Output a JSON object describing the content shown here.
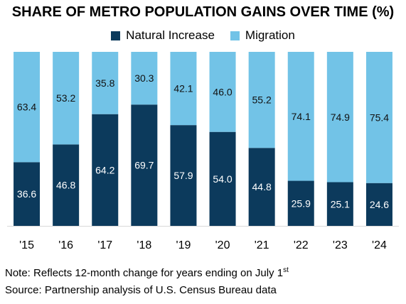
{
  "chart_data": {
    "type": "bar",
    "stacked": true,
    "title": "SHARE OF METRO POPULATION GAINS OVER TIME (%)",
    "xlabel": "",
    "ylabel": "",
    "ylim": [
      0,
      100
    ],
    "grid": false,
    "legend_position": "top-center",
    "categories": [
      "'15",
      "'16",
      "'17",
      "'18",
      "'19",
      "'20",
      "'21",
      "'22",
      "'23",
      "'24"
    ],
    "series": [
      {
        "name": "Natural Increase",
        "color": "#0c3a5c",
        "label_color": "#ffffff",
        "values": [
          36.6,
          46.8,
          64.2,
          69.7,
          57.9,
          54.0,
          44.8,
          25.9,
          25.1,
          24.6
        ],
        "labels": [
          "36.6",
          "46.8",
          "64.2",
          "69.7",
          "57.9",
          "54.0",
          "44.8",
          "25.9",
          "25.1",
          "24.6"
        ]
      },
      {
        "name": "Migration",
        "color": "#72c3e7",
        "label_color": "#111111",
        "values": [
          63.4,
          53.2,
          35.8,
          30.3,
          42.1,
          46.0,
          55.2,
          74.1,
          74.9,
          75.4
        ],
        "labels": [
          "63.4",
          "53.2",
          "35.8",
          "30.3",
          "42.1",
          "46.0",
          "55.2",
          "74.1",
          "74.9",
          "75.4"
        ]
      }
    ]
  },
  "notes": {
    "note_text": "Note: Reflects 12-month change for years ending on July 1",
    "note_sup": "st",
    "source": "Source: Partnership analysis of U.S. Census Bureau data"
  }
}
